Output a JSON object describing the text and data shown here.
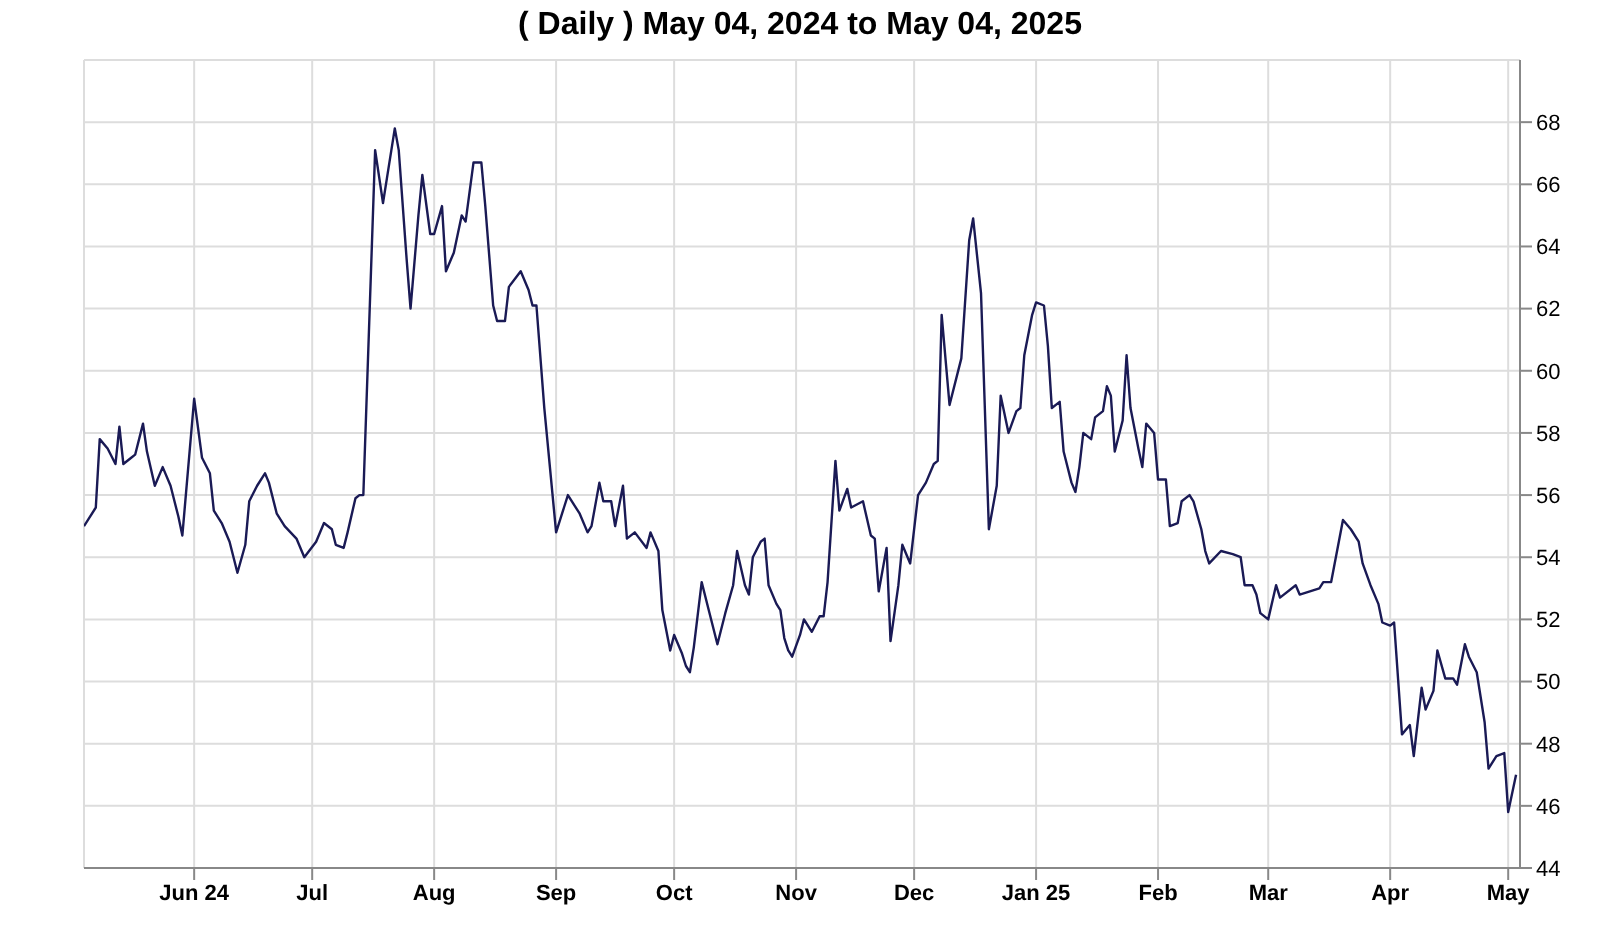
{
  "chart_data": {
    "type": "line",
    "title": "( Daily ) May 04, 2024 to May 04, 2025",
    "x": [
      "2024-05-04",
      "2024-05-07",
      "2024-05-08",
      "2024-05-10",
      "2024-05-12",
      "2024-05-13",
      "2024-05-14",
      "2024-05-16",
      "2024-05-17",
      "2024-05-19",
      "2024-05-20",
      "2024-05-22",
      "2024-05-24",
      "2024-05-26",
      "2024-05-28",
      "2024-05-29",
      "2024-06-01",
      "2024-06-03",
      "2024-06-05",
      "2024-06-06",
      "2024-06-08",
      "2024-06-10",
      "2024-06-12",
      "2024-06-14",
      "2024-06-15",
      "2024-06-17",
      "2024-06-19",
      "2024-06-20",
      "2024-06-22",
      "2024-06-24",
      "2024-06-27",
      "2024-06-29",
      "2024-07-02",
      "2024-07-04",
      "2024-07-06",
      "2024-07-07",
      "2024-07-09",
      "2024-07-10",
      "2024-07-12",
      "2024-07-13",
      "2024-07-14",
      "2024-07-17",
      "2024-07-19",
      "2024-07-20",
      "2024-07-22",
      "2024-07-23",
      "2024-07-25",
      "2024-07-26",
      "2024-07-28",
      "2024-07-29",
      "2024-07-31",
      "2024-08-01",
      "2024-08-03",
      "2024-08-04",
      "2024-08-06",
      "2024-08-08",
      "2024-08-09",
      "2024-08-11",
      "2024-08-13",
      "2024-08-14",
      "2024-08-16",
      "2024-08-17",
      "2024-08-19",
      "2024-08-20",
      "2024-08-23",
      "2024-08-25",
      "2024-08-26",
      "2024-08-27",
      "2024-08-29",
      "2024-09-01",
      "2024-09-03",
      "2024-09-04",
      "2024-09-07",
      "2024-09-09",
      "2024-09-10",
      "2024-09-12",
      "2024-09-13",
      "2024-09-15",
      "2024-09-16",
      "2024-09-18",
      "2024-09-19",
      "2024-09-21",
      "2024-09-24",
      "2024-09-25",
      "2024-09-27",
      "2024-09-28",
      "2024-09-30",
      "2024-10-01",
      "2024-10-03",
      "2024-10-04",
      "2024-10-05",
      "2024-10-06",
      "2024-10-08",
      "2024-10-10",
      "2024-10-12",
      "2024-10-14",
      "2024-10-16",
      "2024-10-17",
      "2024-10-19",
      "2024-10-20",
      "2024-10-21",
      "2024-10-23",
      "2024-10-24",
      "2024-10-25",
      "2024-10-27",
      "2024-10-28",
      "2024-10-29",
      "2024-10-30",
      "2024-10-31",
      "2024-11-02",
      "2024-11-03",
      "2024-11-05",
      "2024-11-07",
      "2024-11-08",
      "2024-11-09",
      "2024-11-11",
      "2024-11-12",
      "2024-11-14",
      "2024-11-15",
      "2024-11-18",
      "2024-11-20",
      "2024-11-21",
      "2024-11-22",
      "2024-11-24",
      "2024-11-25",
      "2024-11-27",
      "2024-11-28",
      "2024-11-30",
      "2024-12-02",
      "2024-12-04",
      "2024-12-06",
      "2024-12-07",
      "2024-12-08",
      "2024-12-10",
      "2024-12-12",
      "2024-12-13",
      "2024-12-15",
      "2024-12-16",
      "2024-12-18",
      "2024-12-20",
      "2024-12-22",
      "2024-12-23",
      "2024-12-25",
      "2024-12-27",
      "2024-12-28",
      "2024-12-29",
      "2024-12-31",
      "2025-01-01",
      "2025-01-03",
      "2025-01-04",
      "2025-01-05",
      "2025-01-07",
      "2025-01-08",
      "2025-01-10",
      "2025-01-11",
      "2025-01-12",
      "2025-01-13",
      "2025-01-15",
      "2025-01-16",
      "2025-01-18",
      "2025-01-19",
      "2025-01-20",
      "2025-01-21",
      "2025-01-23",
      "2025-01-24",
      "2025-01-25",
      "2025-01-27",
      "2025-01-28",
      "2025-01-29",
      "2025-01-31",
      "2025-02-01",
      "2025-02-03",
      "2025-02-04",
      "2025-02-06",
      "2025-02-07",
      "2025-02-09",
      "2025-02-10",
      "2025-02-12",
      "2025-02-13",
      "2025-02-14",
      "2025-02-17",
      "2025-02-20",
      "2025-02-22",
      "2025-02-23",
      "2025-02-25",
      "2025-02-26",
      "2025-02-27",
      "2025-03-01",
      "2025-03-03",
      "2025-03-04",
      "2025-03-08",
      "2025-03-09",
      "2025-03-14",
      "2025-03-15",
      "2025-03-17",
      "2025-03-20",
      "2025-03-22",
      "2025-03-24",
      "2025-03-25",
      "2025-03-27",
      "2025-03-29",
      "2025-03-30",
      "2025-04-01",
      "2025-04-02",
      "2025-04-04",
      "2025-04-06",
      "2025-04-07",
      "2025-04-09",
      "2025-04-10",
      "2025-04-12",
      "2025-04-13",
      "2025-04-15",
      "2025-04-17",
      "2025-04-18",
      "2025-04-20",
      "2025-04-21",
      "2025-04-23",
      "2025-04-25",
      "2025-04-26",
      "2025-04-28",
      "2025-04-30",
      "2025-05-01",
      "2025-05-03"
    ],
    "series": [
      {
        "color": "#1a1a55",
        "values": [
          55.0,
          55.6,
          57.8,
          57.5,
          57.0,
          58.2,
          57.0,
          57.2,
          57.3,
          58.3,
          57.4,
          56.3,
          56.9,
          56.3,
          55.3,
          54.7,
          59.1,
          57.2,
          56.7,
          55.5,
          55.1,
          54.5,
          53.5,
          54.4,
          55.8,
          56.3,
          56.7,
          56.4,
          55.4,
          55.0,
          54.6,
          54.0,
          54.5,
          55.1,
          54.9,
          54.4,
          54.3,
          54.8,
          55.9,
          56.0,
          56.0,
          67.1,
          65.4,
          66.2,
          67.8,
          67.1,
          63.6,
          62.0,
          65.0,
          66.3,
          64.4,
          64.4,
          65.3,
          63.2,
          63.8,
          65.0,
          64.8,
          66.7,
          66.7,
          65.3,
          62.1,
          61.6,
          61.6,
          62.7,
          63.2,
          62.6,
          62.1,
          62.1,
          58.8,
          54.8,
          55.6,
          56.0,
          55.4,
          54.8,
          55.0,
          56.4,
          55.8,
          55.8,
          55.0,
          56.3,
          54.6,
          54.8,
          54.3,
          54.8,
          54.2,
          52.3,
          51.0,
          51.5,
          50.9,
          50.5,
          50.3,
          51.1,
          53.2,
          52.2,
          51.2,
          52.2,
          53.1,
          54.2,
          53.1,
          52.8,
          54.0,
          54.5,
          54.6,
          53.1,
          52.5,
          52.3,
          51.4,
          51.0,
          50.8,
          51.5,
          52.0,
          51.6,
          52.1,
          52.1,
          53.2,
          57.1,
          55.5,
          56.2,
          55.6,
          55.8,
          54.7,
          54.6,
          52.9,
          54.3,
          51.3,
          53.1,
          54.4,
          53.8,
          56.0,
          56.4,
          57.0,
          57.1,
          61.8,
          58.9,
          59.9,
          60.4,
          64.2,
          64.9,
          62.5,
          54.9,
          56.3,
          59.2,
          58.0,
          58.7,
          58.8,
          60.5,
          61.8,
          62.2,
          62.1,
          60.8,
          58.8,
          59.0,
          57.4,
          56.4,
          56.1,
          56.9,
          58.0,
          57.8,
          58.5,
          58.7,
          59.5,
          59.2,
          57.4,
          58.4,
          60.5,
          58.8,
          57.5,
          56.9,
          58.3,
          58.0,
          56.5,
          56.5,
          55.0,
          55.1,
          55.8,
          56.0,
          55.8,
          54.9,
          54.2,
          53.8,
          54.2,
          54.1,
          54.0,
          53.1,
          53.1,
          52.8,
          52.2,
          52.0,
          53.1,
          52.7,
          53.1,
          52.8,
          53.0,
          53.2,
          53.2,
          55.2,
          54.9,
          54.5,
          53.8,
          53.1,
          52.5,
          51.9,
          51.8,
          51.9,
          48.3,
          48.6,
          47.6,
          49.8,
          49.1,
          49.7,
          51.0,
          50.1,
          50.1,
          49.9,
          51.2,
          50.8,
          50.3,
          48.7,
          47.2,
          47.6,
          47.7,
          45.8,
          47.0
        ]
      }
    ],
    "xlim": [
      "2024-05-04",
      "2025-05-04"
    ],
    "xticks": [
      {
        "value": "2024-06-01",
        "label": "Jun 24"
      },
      {
        "value": "2024-07-01",
        "label": "Jul"
      },
      {
        "value": "2024-08-01",
        "label": "Aug"
      },
      {
        "value": "2024-09-01",
        "label": "Sep"
      },
      {
        "value": "2024-10-01",
        "label": "Oct"
      },
      {
        "value": "2024-11-01",
        "label": "Nov"
      },
      {
        "value": "2024-12-01",
        "label": "Dec"
      },
      {
        "value": "2025-01-01",
        "label": "Jan 25"
      },
      {
        "value": "2025-02-01",
        "label": "Feb"
      },
      {
        "value": "2025-03-01",
        "label": "Mar"
      },
      {
        "value": "2025-04-01",
        "label": "Apr"
      },
      {
        "value": "2025-05-01",
        "label": "May"
      }
    ],
    "ylim": [
      44,
      70
    ],
    "yticks": [
      44,
      46,
      48,
      50,
      52,
      54,
      56,
      58,
      60,
      62,
      64,
      66,
      68
    ],
    "grid": true,
    "legend": false,
    "marker": "none",
    "line_style": "solid"
  }
}
